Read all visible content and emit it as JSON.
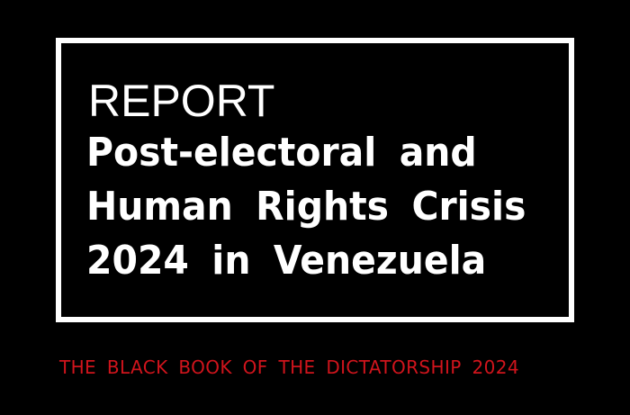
{
  "cover": {
    "label": "REPORT",
    "title_lines": [
      "Post-electoral and",
      "Human Rights Crisis",
      "2024 in Venezuela"
    ],
    "subtitle": "THE BLACK BOOK OF THE DICTATORSHIP 2024"
  },
  "colors": {
    "background": "#000000",
    "frame": "#ffffff",
    "subtitle": "#d0141c"
  }
}
